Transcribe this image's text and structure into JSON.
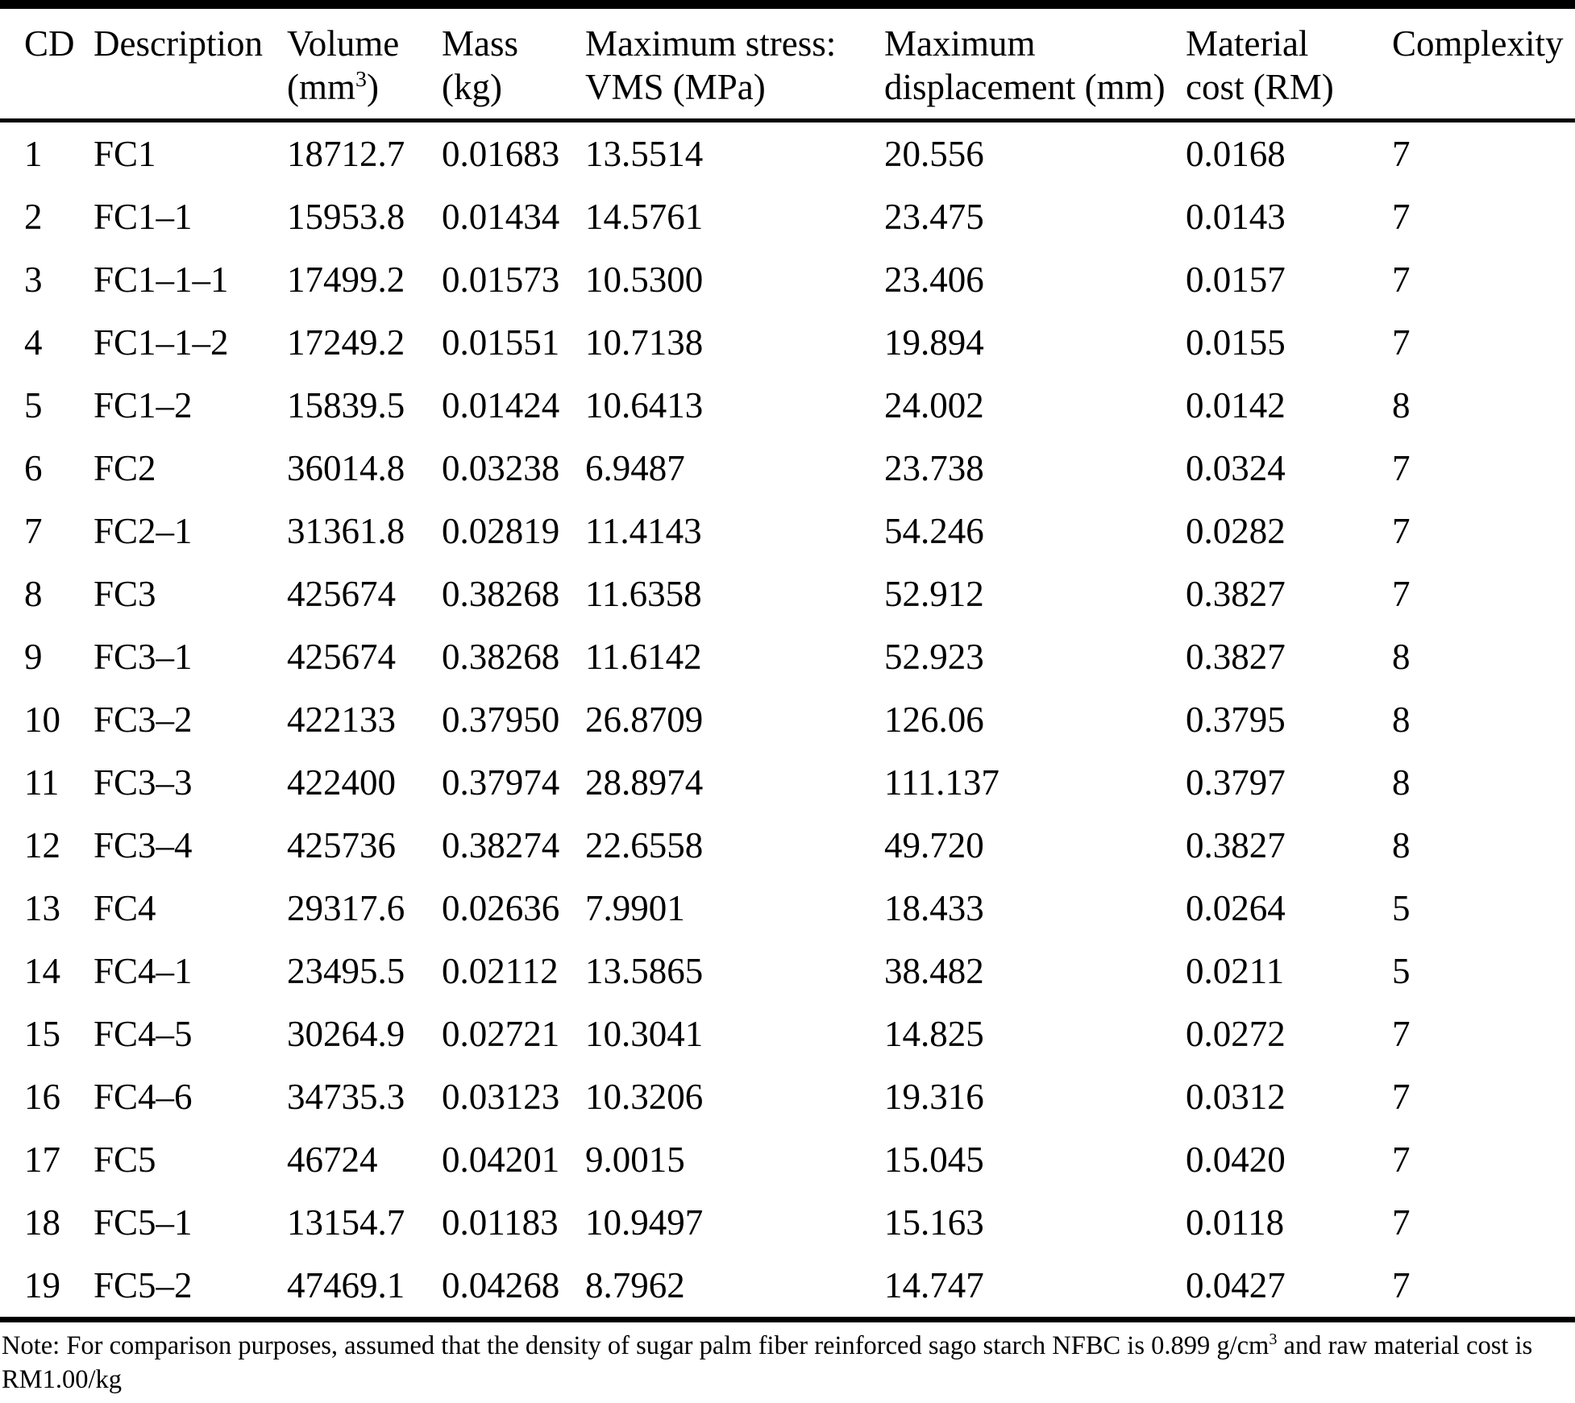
{
  "table": {
    "columns": [
      {
        "line1": "CD"
      },
      {
        "line1": "Description"
      },
      {
        "line1": "Volume",
        "line2_pre": "(mm",
        "line2_sup": "3",
        "line2_post": ")"
      },
      {
        "line1": "Mass",
        "line2": "(kg)"
      },
      {
        "line1": "Maximum stress:",
        "line2": "VMS (MPa)"
      },
      {
        "line1": "Maximum",
        "line2": "displacement (mm)"
      },
      {
        "line1": "Material",
        "line2": "cost (RM)"
      },
      {
        "line1": "Complexity"
      }
    ],
    "rows": [
      [
        "1",
        "FC1",
        "18712.7",
        "0.01683",
        "13.5514",
        "20.556",
        "0.0168",
        "7"
      ],
      [
        "2",
        "FC1–1",
        "15953.8",
        "0.01434",
        "14.5761",
        "23.475",
        "0.0143",
        "7"
      ],
      [
        "3",
        "FC1–1–1",
        "17499.2",
        "0.01573",
        "10.5300",
        "23.406",
        "0.0157",
        "7"
      ],
      [
        "4",
        "FC1–1–2",
        "17249.2",
        "0.01551",
        "10.7138",
        "19.894",
        "0.0155",
        "7"
      ],
      [
        "5",
        "FC1–2",
        "15839.5",
        "0.01424",
        "10.6413",
        "24.002",
        "0.0142",
        "8"
      ],
      [
        "6",
        "FC2",
        "36014.8",
        "0.03238",
        "6.9487",
        "23.738",
        "0.0324",
        "7"
      ],
      [
        "7",
        "FC2–1",
        "31361.8",
        "0.02819",
        "11.4143",
        "54.246",
        "0.0282",
        "7"
      ],
      [
        "8",
        "FC3",
        "425674",
        "0.38268",
        "11.6358",
        "52.912",
        "0.3827",
        "7"
      ],
      [
        "9",
        "FC3–1",
        "425674",
        "0.38268",
        "11.6142",
        "52.923",
        "0.3827",
        "8"
      ],
      [
        "10",
        "FC3–2",
        "422133",
        "0.37950",
        "26.8709",
        "126.06",
        "0.3795",
        "8"
      ],
      [
        "11",
        "FC3–3",
        "422400",
        "0.37974",
        "28.8974",
        "111.137",
        "0.3797",
        "8"
      ],
      [
        "12",
        "FC3–4",
        "425736",
        "0.38274",
        "22.6558",
        "49.720",
        "0.3827",
        "8"
      ],
      [
        "13",
        "FC4",
        "29317.6",
        "0.02636",
        "7.9901",
        "18.433",
        "0.0264",
        "5"
      ],
      [
        "14",
        "FC4–1",
        "23495.5",
        "0.02112",
        "13.5865",
        "38.482",
        "0.0211",
        "5"
      ],
      [
        "15",
        "FC4–5",
        "30264.9",
        "0.02721",
        "10.3041",
        "14.825",
        "0.0272",
        "7"
      ],
      [
        "16",
        "FC4–6",
        "34735.3",
        "0.03123",
        "10.3206",
        "19.316",
        "0.0312",
        "7"
      ],
      [
        "17",
        "FC5",
        "46724",
        "0.04201",
        "9.0015",
        "15.045",
        "0.0420",
        "7"
      ],
      [
        "18",
        "FC5–1",
        "13154.7",
        "0.01183",
        "10.9497",
        "15.163",
        "0.0118",
        "7"
      ],
      [
        "19",
        "FC5–2",
        "47469.1",
        "0.04268",
        "8.7962",
        "14.747",
        "0.0427",
        "7"
      ]
    ]
  },
  "note": {
    "line1_pre": "Note: For comparison purposes, assumed that the density of sugar palm fiber reinforced sago starch NFBC is 0.899 g/cm",
    "sup": "3",
    "line1_post": " and raw material cost is",
    "line2": "RM1.00/kg"
  }
}
